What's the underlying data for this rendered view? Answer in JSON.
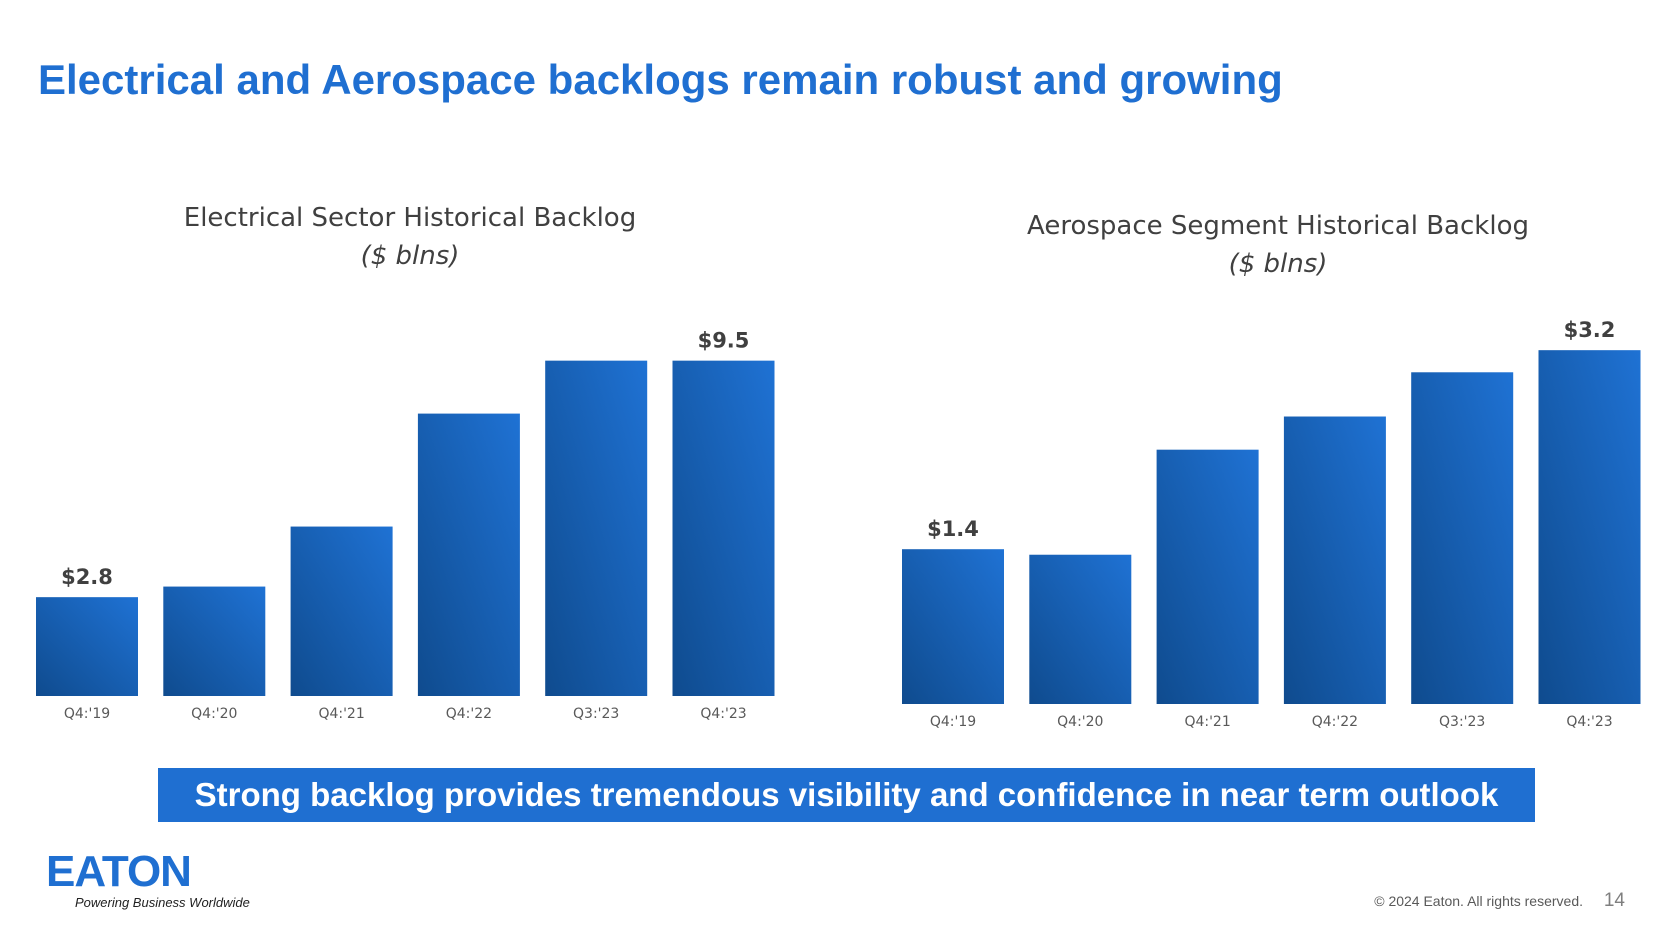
{
  "slide": {
    "title": "Electrical and Aerospace backlogs remain robust and growing",
    "banner": "Strong backlog provides tremendous visibility and confidence in near term outlook",
    "logo_text": "EATON",
    "tagline": "Powering Business Worldwide",
    "copyright": "© 2024 Eaton. All rights reserved.",
    "page_number": "14"
  },
  "colors": {
    "accent": "#1f6fd1",
    "bar_top": "#1f72d4",
    "bar_bottom": "#0f4b8e",
    "text": "#404040"
  },
  "chart_data": [
    {
      "type": "bar",
      "title": "Electrical Sector Historical Backlog",
      "subtitle": "($ blns)",
      "categories": [
        "Q4:'19",
        "Q4:'20",
        "Q4:'21",
        "Q4:'22",
        "Q3:'23",
        "Q4:'23"
      ],
      "values": [
        2.8,
        3.1,
        4.8,
        8.0,
        9.5,
        9.5
      ],
      "data_labels": [
        "$2.8",
        "",
        "",
        "",
        "",
        "$9.5"
      ],
      "ylim": [
        0,
        10
      ],
      "grid": false,
      "legend": "none"
    },
    {
      "type": "bar",
      "title": "Aerospace Segment Historical Backlog",
      "subtitle": "($ blns)",
      "categories": [
        "Q4:'19",
        "Q4:'20",
        "Q4:'21",
        "Q4:'22",
        "Q3:'23",
        "Q4:'23"
      ],
      "values": [
        1.4,
        1.35,
        2.3,
        2.6,
        3.0,
        3.2
      ],
      "data_labels": [
        "$1.4",
        "",
        "",
        "",
        "",
        "$3.2"
      ],
      "ylim": [
        0,
        3.5
      ],
      "grid": false,
      "legend": "none"
    }
  ]
}
